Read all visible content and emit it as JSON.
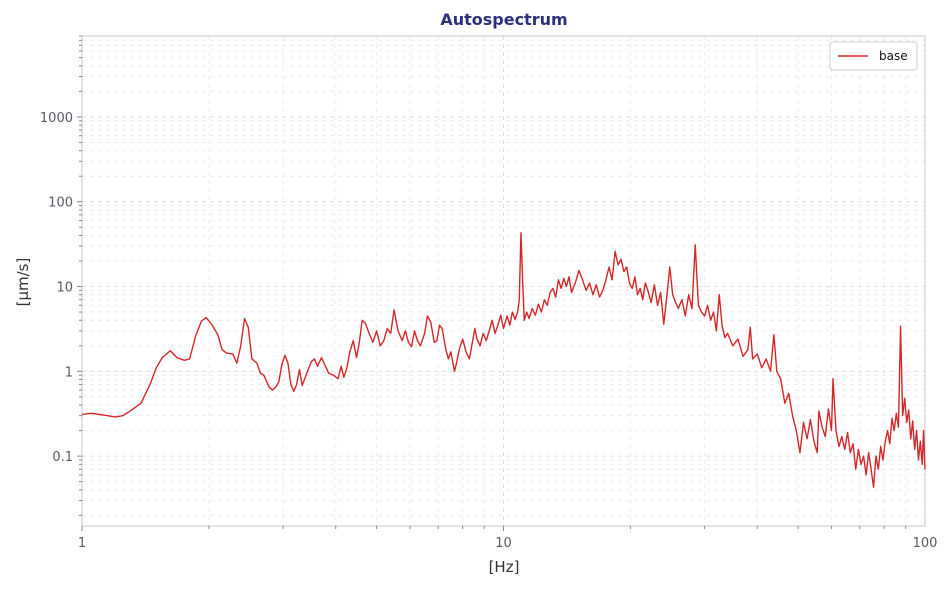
{
  "chart_data": {
    "type": "line",
    "title": "Autospectrum",
    "xlabel": "[Hz]",
    "ylabel": "[µm/s]",
    "x_scale": "log",
    "y_scale": "log",
    "xlim": [
      1,
      100
    ],
    "ylim": [
      0.015,
      9000
    ],
    "x_ticks": [
      {
        "value": 1,
        "label": "1"
      },
      {
        "value": 10,
        "label": "10"
      },
      {
        "value": 100,
        "label": "100"
      }
    ],
    "y_ticks": [
      {
        "value": 0.1,
        "label": "0.1"
      },
      {
        "value": 1,
        "label": "1"
      },
      {
        "value": 10,
        "label": "10"
      },
      {
        "value": 100,
        "label": "100"
      },
      {
        "value": 1000,
        "label": "1000"
      }
    ],
    "grid": true,
    "legend_position": "top-right",
    "series": [
      {
        "name": "base",
        "color": "#d62728",
        "points": [
          [
            1.0,
            0.31
          ],
          [
            1.05,
            0.32
          ],
          [
            1.1,
            0.31
          ],
          [
            1.15,
            0.3
          ],
          [
            1.2,
            0.29
          ],
          [
            1.25,
            0.3
          ],
          [
            1.3,
            0.34
          ],
          [
            1.38,
            0.42
          ],
          [
            1.45,
            0.7
          ],
          [
            1.5,
            1.1
          ],
          [
            1.55,
            1.45
          ],
          [
            1.62,
            1.75
          ],
          [
            1.68,
            1.45
          ],
          [
            1.75,
            1.35
          ],
          [
            1.8,
            1.4
          ],
          [
            1.86,
            2.6
          ],
          [
            1.92,
            3.9
          ],
          [
            1.97,
            4.3
          ],
          [
            2.03,
            3.6
          ],
          [
            2.1,
            2.7
          ],
          [
            2.15,
            1.8
          ],
          [
            2.2,
            1.65
          ],
          [
            2.28,
            1.6
          ],
          [
            2.33,
            1.25
          ],
          [
            2.38,
            2.0
          ],
          [
            2.43,
            4.2
          ],
          [
            2.48,
            3.3
          ],
          [
            2.53,
            1.4
          ],
          [
            2.6,
            1.25
          ],
          [
            2.65,
            0.95
          ],
          [
            2.7,
            0.9
          ],
          [
            2.78,
            0.65
          ],
          [
            2.83,
            0.6
          ],
          [
            2.88,
            0.65
          ],
          [
            2.93,
            0.75
          ],
          [
            2.98,
            1.2
          ],
          [
            3.03,
            1.55
          ],
          [
            3.08,
            1.25
          ],
          [
            3.13,
            0.7
          ],
          [
            3.18,
            0.58
          ],
          [
            3.23,
            0.7
          ],
          [
            3.28,
            1.05
          ],
          [
            3.33,
            0.68
          ],
          [
            3.4,
            0.9
          ],
          [
            3.5,
            1.3
          ],
          [
            3.56,
            1.4
          ],
          [
            3.62,
            1.15
          ],
          [
            3.7,
            1.45
          ],
          [
            3.78,
            1.15
          ],
          [
            3.85,
            0.95
          ],
          [
            3.95,
            0.9
          ],
          [
            4.05,
            0.82
          ],
          [
            4.12,
            1.15
          ],
          [
            4.18,
            0.85
          ],
          [
            4.25,
            1.1
          ],
          [
            4.32,
            1.7
          ],
          [
            4.4,
            2.3
          ],
          [
            4.48,
            1.45
          ],
          [
            4.55,
            2.2
          ],
          [
            4.62,
            4.0
          ],
          [
            4.7,
            3.7
          ],
          [
            4.8,
            2.8
          ],
          [
            4.9,
            2.2
          ],
          [
            5.0,
            3.0
          ],
          [
            5.1,
            2.0
          ],
          [
            5.2,
            2.3
          ],
          [
            5.3,
            3.2
          ],
          [
            5.4,
            2.8
          ],
          [
            5.5,
            5.3
          ],
          [
            5.62,
            3.0
          ],
          [
            5.75,
            2.3
          ],
          [
            5.85,
            3.0
          ],
          [
            5.95,
            2.2
          ],
          [
            6.05,
            1.95
          ],
          [
            6.15,
            3.0
          ],
          [
            6.25,
            2.3
          ],
          [
            6.35,
            2.0
          ],
          [
            6.5,
            2.8
          ],
          [
            6.6,
            4.5
          ],
          [
            6.72,
            3.8
          ],
          [
            6.85,
            2.2
          ],
          [
            6.95,
            2.3
          ],
          [
            7.05,
            3.5
          ],
          [
            7.15,
            3.2
          ],
          [
            7.3,
            1.8
          ],
          [
            7.4,
            1.4
          ],
          [
            7.5,
            1.7
          ],
          [
            7.65,
            1.0
          ],
          [
            7.75,
            1.3
          ],
          [
            7.85,
            1.8
          ],
          [
            8.0,
            2.4
          ],
          [
            8.15,
            1.7
          ],
          [
            8.3,
            1.4
          ],
          [
            8.45,
            2.3
          ],
          [
            8.55,
            3.2
          ],
          [
            8.65,
            2.4
          ],
          [
            8.8,
            2.0
          ],
          [
            8.95,
            2.8
          ],
          [
            9.1,
            2.3
          ],
          [
            9.25,
            3.0
          ],
          [
            9.4,
            4.0
          ],
          [
            9.55,
            2.8
          ],
          [
            9.7,
            3.5
          ],
          [
            9.85,
            4.6
          ],
          [
            10.0,
            3.2
          ],
          [
            10.2,
            4.5
          ],
          [
            10.35,
            3.5
          ],
          [
            10.5,
            5.0
          ],
          [
            10.65,
            4.1
          ],
          [
            10.8,
            5.0
          ],
          [
            10.9,
            7.0
          ],
          [
            11.0,
            43
          ],
          [
            11.1,
            12
          ],
          [
            11.2,
            4.0
          ],
          [
            11.35,
            5.0
          ],
          [
            11.5,
            4.2
          ],
          [
            11.7,
            5.5
          ],
          [
            11.9,
            4.6
          ],
          [
            12.1,
            6.2
          ],
          [
            12.3,
            5.0
          ],
          [
            12.5,
            7.0
          ],
          [
            12.7,
            6.0
          ],
          [
            12.9,
            8.5
          ],
          [
            13.1,
            9.5
          ],
          [
            13.3,
            7.5
          ],
          [
            13.5,
            12
          ],
          [
            13.7,
            9.5
          ],
          [
            13.9,
            12.5
          ],
          [
            14.1,
            10
          ],
          [
            14.3,
            13
          ],
          [
            14.5,
            8.5
          ],
          [
            14.8,
            11
          ],
          [
            15.1,
            15.5
          ],
          [
            15.4,
            12
          ],
          [
            15.7,
            9.0
          ],
          [
            16.0,
            11
          ],
          [
            16.3,
            8.0
          ],
          [
            16.6,
            10.5
          ],
          [
            16.9,
            7.5
          ],
          [
            17.2,
            9.0
          ],
          [
            17.5,
            12
          ],
          [
            17.8,
            17
          ],
          [
            18.1,
            12
          ],
          [
            18.4,
            26
          ],
          [
            18.7,
            18
          ],
          [
            19.0,
            21
          ],
          [
            19.3,
            15
          ],
          [
            19.6,
            17
          ],
          [
            19.9,
            11
          ],
          [
            20.2,
            9.5
          ],
          [
            20.5,
            13
          ],
          [
            20.8,
            8.0
          ],
          [
            21.1,
            9.5
          ],
          [
            21.4,
            7.0
          ],
          [
            21.7,
            11
          ],
          [
            22.0,
            9.0
          ],
          [
            22.4,
            6.5
          ],
          [
            22.8,
            10.5
          ],
          [
            23.2,
            6.0
          ],
          [
            23.6,
            8.5
          ],
          [
            24.0,
            3.6
          ],
          [
            24.4,
            7.5
          ],
          [
            24.8,
            17
          ],
          [
            25.2,
            8.0
          ],
          [
            25.6,
            6.5
          ],
          [
            26.0,
            5.5
          ],
          [
            26.5,
            7.0
          ],
          [
            27.0,
            4.5
          ],
          [
            27.5,
            8.0
          ],
          [
            28.0,
            5.5
          ],
          [
            28.5,
            31
          ],
          [
            29.0,
            6.0
          ],
          [
            29.5,
            5.0
          ],
          [
            30.0,
            4.5
          ],
          [
            30.5,
            6.0
          ],
          [
            31.0,
            4.0
          ],
          [
            31.5,
            5.0
          ],
          [
            32.0,
            3.0
          ],
          [
            32.5,
            8.0
          ],
          [
            33.0,
            3.5
          ],
          [
            33.5,
            2.5
          ],
          [
            34.0,
            2.8
          ],
          [
            35.0,
            2.0
          ],
          [
            36.0,
            2.4
          ],
          [
            37.0,
            1.5
          ],
          [
            38.0,
            1.8
          ],
          [
            38.5,
            3.3
          ],
          [
            39.0,
            1.4
          ],
          [
            40.0,
            1.6
          ],
          [
            41.0,
            1.1
          ],
          [
            42.0,
            1.4
          ],
          [
            43.0,
            1.0
          ],
          [
            43.8,
            2.7
          ],
          [
            44.5,
            1.0
          ],
          [
            45.5,
            0.8
          ],
          [
            46.5,
            0.42
          ],
          [
            47.5,
            0.55
          ],
          [
            48.5,
            0.3
          ],
          [
            49.5,
            0.2
          ],
          [
            50.5,
            0.11
          ],
          [
            51.5,
            0.25
          ],
          [
            52.5,
            0.16
          ],
          [
            53.5,
            0.27
          ],
          [
            54.5,
            0.15
          ],
          [
            55.5,
            0.11
          ],
          [
            56.0,
            0.34
          ],
          [
            57.0,
            0.22
          ],
          [
            58.0,
            0.17
          ],
          [
            59.0,
            0.36
          ],
          [
            60.0,
            0.2
          ],
          [
            60.5,
            0.82
          ],
          [
            61.5,
            0.2
          ],
          [
            62.5,
            0.13
          ],
          [
            63.5,
            0.17
          ],
          [
            64.5,
            0.12
          ],
          [
            65.5,
            0.19
          ],
          [
            66.5,
            0.11
          ],
          [
            67.5,
            0.14
          ],
          [
            68.5,
            0.07
          ],
          [
            69.5,
            0.12
          ],
          [
            70.5,
            0.08
          ],
          [
            71.5,
            0.1
          ],
          [
            72.5,
            0.06
          ],
          [
            73.5,
            0.11
          ],
          [
            74.5,
            0.07
          ],
          [
            75.5,
            0.043
          ],
          [
            76.5,
            0.1
          ],
          [
            77.5,
            0.07
          ],
          [
            78.5,
            0.13
          ],
          [
            79.5,
            0.09
          ],
          [
            80.5,
            0.15
          ],
          [
            81.5,
            0.2
          ],
          [
            82.5,
            0.14
          ],
          [
            83.5,
            0.28
          ],
          [
            84.5,
            0.2
          ],
          [
            85.5,
            0.32
          ],
          [
            86.5,
            0.22
          ],
          [
            87.5,
            3.4
          ],
          [
            88.5,
            0.3
          ],
          [
            89.5,
            0.48
          ],
          [
            90.5,
            0.25
          ],
          [
            91.5,
            0.35
          ],
          [
            92.5,
            0.16
          ],
          [
            93.5,
            0.26
          ],
          [
            94.5,
            0.12
          ],
          [
            95.5,
            0.2
          ],
          [
            96.5,
            0.09
          ],
          [
            97.5,
            0.15
          ],
          [
            98.5,
            0.08
          ],
          [
            99.2,
            0.2
          ],
          [
            100.0,
            0.07
          ]
        ]
      }
    ]
  }
}
